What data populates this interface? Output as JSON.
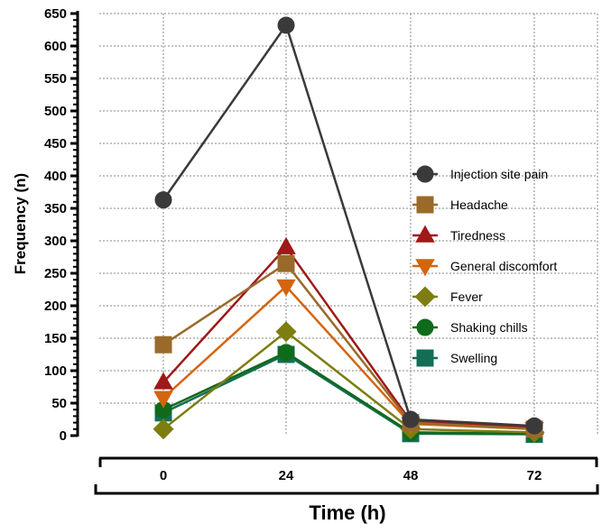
{
  "chart_data": {
    "type": "line",
    "title": "",
    "xlabel": "Time (h)",
    "ylabel": "Frequency (n)",
    "x": [
      0,
      24,
      48,
      72
    ],
    "x_tick_labels": [
      "0",
      "24",
      "48",
      "72"
    ],
    "ylim": [
      0,
      650
    ],
    "y_ticks": [
      0,
      50,
      100,
      150,
      200,
      250,
      300,
      350,
      400,
      450,
      500,
      550,
      600,
      650
    ],
    "y_tick_labels": [
      "0",
      "50",
      "100",
      "150",
      "200",
      "250",
      "300",
      "350",
      "400",
      "450",
      "500",
      "550",
      "600",
      "650"
    ],
    "grid": true,
    "legend_position": "right",
    "series": [
      {
        "name": "Injection site pain",
        "values": [
          363,
          632,
          25,
          15
        ],
        "color": "#3a3a3a",
        "marker": "circle"
      },
      {
        "name": "Headache",
        "values": [
          140,
          265,
          20,
          10
        ],
        "color": "#9a6a2a",
        "marker": "square"
      },
      {
        "name": "Tiredness",
        "values": [
          82,
          290,
          22,
          12
        ],
        "color": "#a01818",
        "marker": "triangle-up"
      },
      {
        "name": "General discomfort",
        "values": [
          58,
          230,
          18,
          10
        ],
        "color": "#d4650f",
        "marker": "triangle-down"
      },
      {
        "name": "Fever",
        "values": [
          10,
          160,
          10,
          5
        ],
        "color": "#7d7d10",
        "marker": "diamond"
      },
      {
        "name": "Shaking chills",
        "values": [
          40,
          128,
          5,
          3
        ],
        "color": "#0f6a1a",
        "marker": "circle"
      },
      {
        "name": "Swelling",
        "values": [
          35,
          125,
          3,
          2
        ],
        "color": "#146e55",
        "marker": "square"
      }
    ]
  }
}
